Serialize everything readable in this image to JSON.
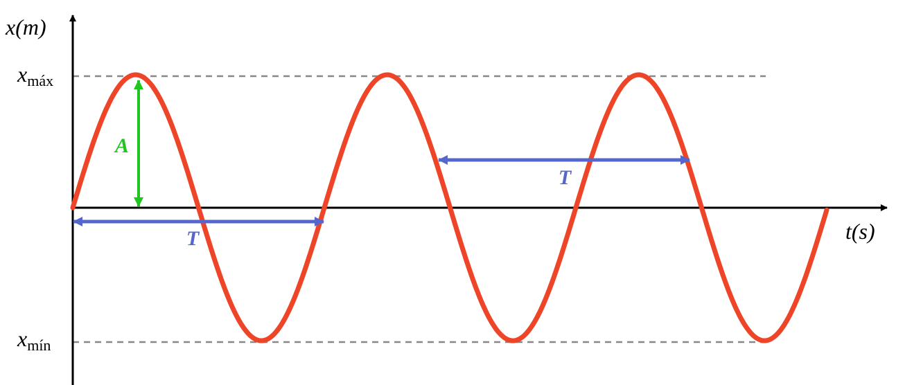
{
  "axes": {
    "y_label": "x(m)",
    "x_label": "t(s)"
  },
  "levels": {
    "max": {
      "symbol": "x",
      "subscript": "máx"
    },
    "min": {
      "symbol": "x",
      "subscript": "mín"
    }
  },
  "amplitude": {
    "label": "A"
  },
  "periods": [
    {
      "label": "T"
    },
    {
      "label": "T"
    }
  ]
}
